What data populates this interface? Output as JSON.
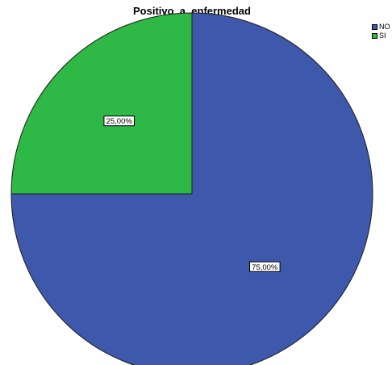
{
  "chart_data": {
    "type": "pie",
    "title": "Positivo_a_enfermedad",
    "categories": [
      "NO",
      "SI"
    ],
    "values": [
      75,
      25
    ],
    "labels": [
      "75,00%",
      "25,00%"
    ],
    "colors": [
      "#3e58ac",
      "#2eb845"
    ],
    "start_angle_deg": 0,
    "direction": "clockwise",
    "legend_position": "top-right"
  }
}
